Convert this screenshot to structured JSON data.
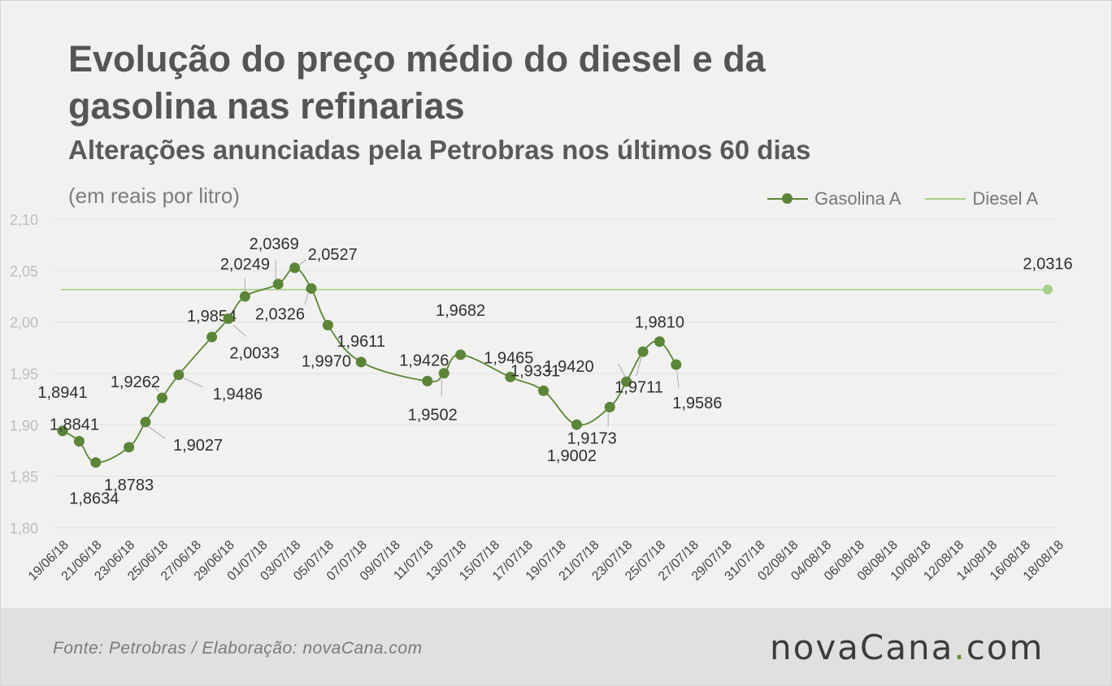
{
  "title": "Evolução do preço médio do diesel e da gasolina nas refinarias",
  "subtitle": "Alterações anunciadas pela Petrobras nos últimos 60 dias",
  "units_note": "(em reais por litro)",
  "source": "Fonte:  Petrobras  / Elaboração:  novaCana.com",
  "logo": {
    "main": "novaCana",
    "dot": ".",
    "tld": "com"
  },
  "colors": {
    "gasolina": "#5b8537",
    "diesel": "#a6d08a",
    "grid": "#e3e3e1",
    "axis_text": "#bdbdbd",
    "label_text": "#2f2f2f",
    "leader": "#aaaaaa"
  },
  "chart_data": {
    "type": "line",
    "ylim": [
      1.8,
      2.1
    ],
    "yticks": [
      "1,80",
      "1,85",
      "1,90",
      "1,95",
      "2,00",
      "2,05",
      "2,10"
    ],
    "grid": true,
    "legend_position": "top-right",
    "x_tick_labels": [
      "19/06/18",
      "21/06/18",
      "23/06/18",
      "25/06/18",
      "27/06/18",
      "29/06/18",
      "01/07/18",
      "03/07/18",
      "05/07/18",
      "07/07/18",
      "09/07/18",
      "11/07/18",
      "13/07/18",
      "15/07/18",
      "17/07/18",
      "19/07/18",
      "21/07/18",
      "23/07/18",
      "25/07/18",
      "27/07/18",
      "29/07/18",
      "31/07/18",
      "02/08/18",
      "04/08/18",
      "06/08/18",
      "08/08/18",
      "10/08/18",
      "12/08/18",
      "14/08/18",
      "16/08/18",
      "18/08/18"
    ],
    "series": [
      {
        "name": "Gasolina A",
        "style": "line-with-markers",
        "points": [
          {
            "x": "19/06/18",
            "y": 1.8941,
            "label": "1,8941"
          },
          {
            "x": "20/06/18",
            "y": 1.8841,
            "label": "1,8841"
          },
          {
            "x": "21/06/18",
            "y": 1.8634,
            "label": "1,8634"
          },
          {
            "x": "23/06/18",
            "y": 1.8783,
            "label": "1,8783"
          },
          {
            "x": "24/06/18",
            "y": 1.9027,
            "label": "1,9027"
          },
          {
            "x": "25/06/18",
            "y": 1.9262,
            "label": "1,9262"
          },
          {
            "x": "26/06/18",
            "y": 1.9486,
            "label": "1,9486"
          },
          {
            "x": "28/06/18",
            "y": 1.9854,
            "label": "1,9854"
          },
          {
            "x": "29/06/18",
            "y": 2.0033,
            "label": "2,0033"
          },
          {
            "x": "30/06/18",
            "y": 2.0249,
            "label": "2,0249"
          },
          {
            "x": "02/07/18",
            "y": 2.0369,
            "label": "2,0369"
          },
          {
            "x": "03/07/18",
            "y": 2.0527,
            "label": "2,0527"
          },
          {
            "x": "04/07/18",
            "y": 2.0326,
            "label": "2,0326"
          },
          {
            "x": "05/07/18",
            "y": 1.997,
            "label": "1,9970"
          },
          {
            "x": "07/07/18",
            "y": 1.9611,
            "label": "1,9611"
          },
          {
            "x": "11/07/18",
            "y": 1.9426,
            "label": "1,9426"
          },
          {
            "x": "12/07/18",
            "y": 1.9502,
            "label": "1,9502"
          },
          {
            "x": "13/07/18",
            "y": 1.9682,
            "label": "1,9682"
          },
          {
            "x": "16/07/18",
            "y": 1.9465,
            "label": "1,9465"
          },
          {
            "x": "18/07/18",
            "y": 1.9331,
            "label": "1,9331"
          },
          {
            "x": "20/07/18",
            "y": 1.9002,
            "label": "1,9002"
          },
          {
            "x": "22/07/18",
            "y": 1.9173,
            "label": "1,9173"
          },
          {
            "x": "23/07/18",
            "y": 1.942,
            "label": "1,9420"
          },
          {
            "x": "24/07/18",
            "y": 1.9711,
            "label": "1,9711"
          },
          {
            "x": "25/07/18",
            "y": 1.981,
            "label": "1,9810"
          },
          {
            "x": "26/07/18",
            "y": 1.9586,
            "label": "1,9586"
          }
        ]
      },
      {
        "name": "Diesel A",
        "style": "flat-line",
        "y": 2.0316,
        "label": "2,0316",
        "x_range": [
          "19/06/18",
          "18/08/18"
        ]
      }
    ]
  }
}
